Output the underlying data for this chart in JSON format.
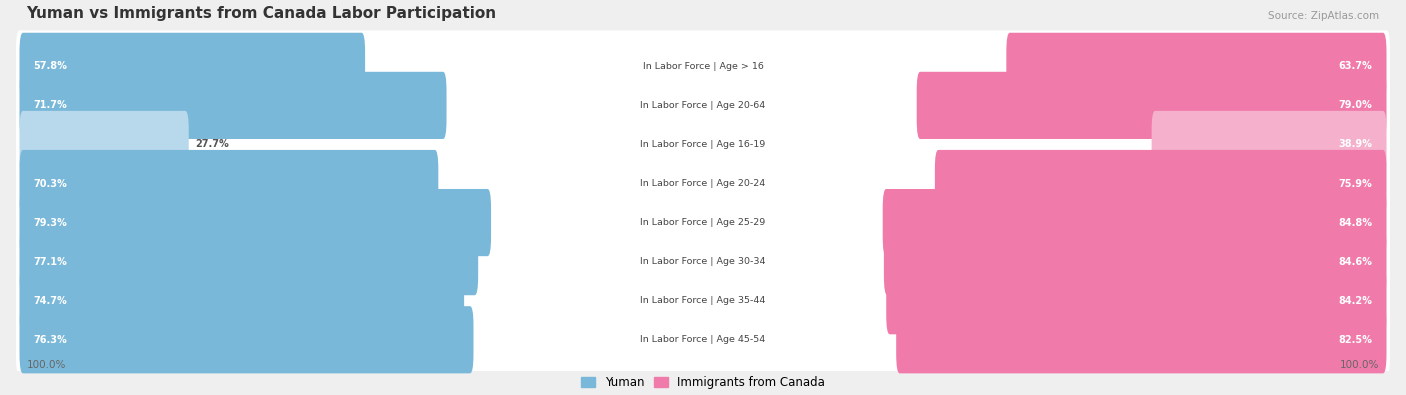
{
  "title": "Yuman vs Immigrants from Canada Labor Participation",
  "source": "Source: ZipAtlas.com",
  "categories": [
    "In Labor Force | Age > 16",
    "In Labor Force | Age 20-64",
    "In Labor Force | Age 16-19",
    "In Labor Force | Age 20-24",
    "In Labor Force | Age 25-29",
    "In Labor Force | Age 30-34",
    "In Labor Force | Age 35-44",
    "In Labor Force | Age 45-54"
  ],
  "yuman_values": [
    57.8,
    71.7,
    27.7,
    70.3,
    79.3,
    77.1,
    74.7,
    76.3
  ],
  "canada_values": [
    63.7,
    79.0,
    38.9,
    75.9,
    84.8,
    84.6,
    84.2,
    82.5
  ],
  "yuman_color": "#7ab8d9",
  "yuman_color_light": "#b8d8ec",
  "canada_color": "#f07aaa",
  "canada_color_light": "#f5b0cc",
  "background_color": "#efefef",
  "row_bg_color": "#ffffff",
  "max_val": 100.0,
  "legend_yuman": "Yuman",
  "legend_canada": "Immigrants from Canada"
}
